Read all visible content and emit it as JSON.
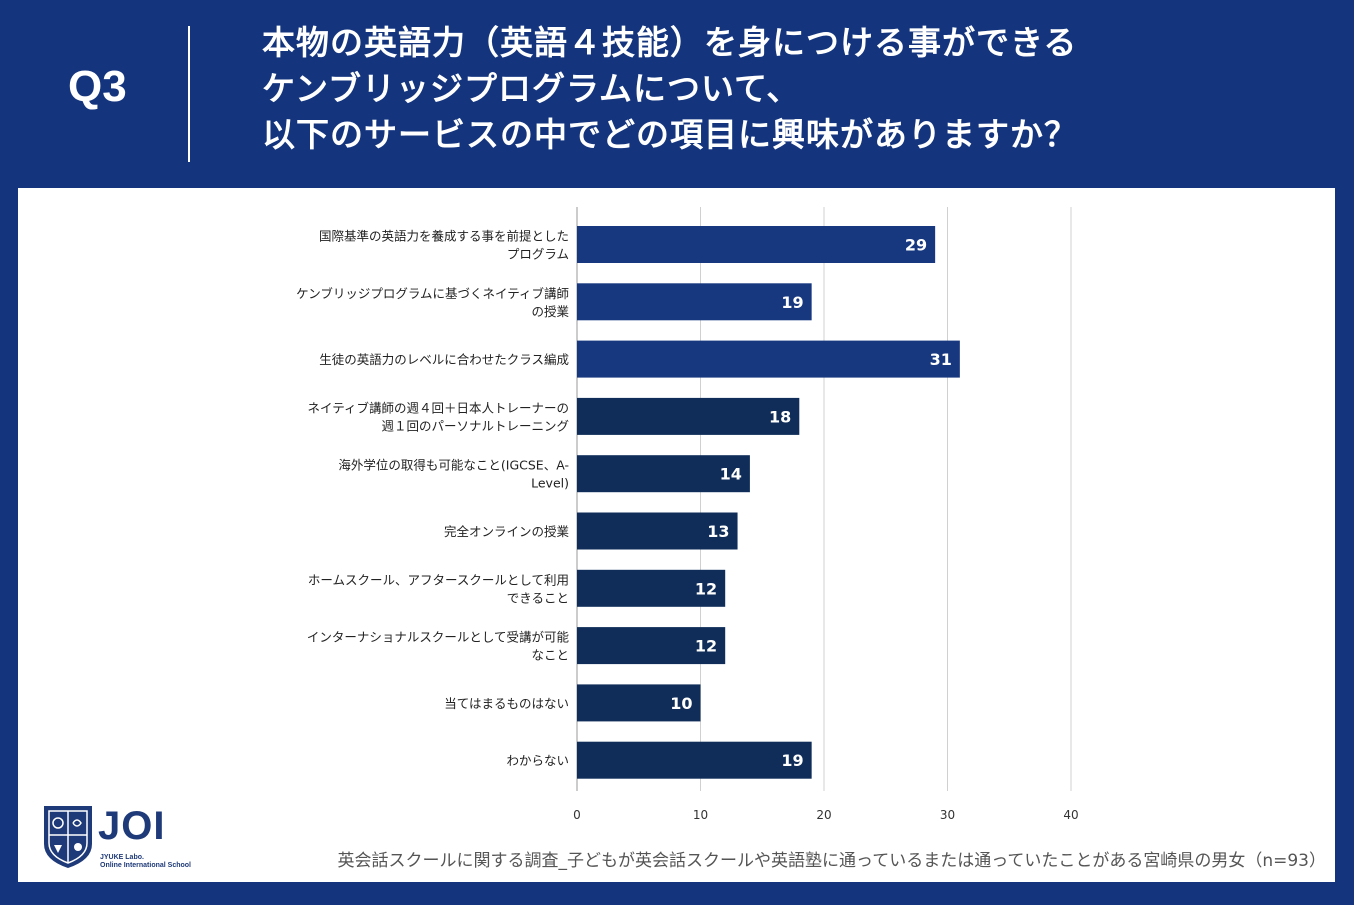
{
  "header": {
    "q_label": "Q3",
    "title_lines": [
      "本物の英語力（英語４技能）を身につける事ができる",
      "ケンブリッジプログラムについて、",
      "以下のサービスの中でどの項目に興味がありますか？"
    ]
  },
  "chart_data": {
    "type": "bar",
    "orientation": "horizontal",
    "categories": [
      [
        "国際基準の英語力を養成する事を前提とした",
        "プログラム"
      ],
      [
        "ケンブリッジプログラムに基づくネイティブ講師",
        "の授業"
      ],
      [
        "生徒の英語力のレベルに合わせたクラス編成"
      ],
      [
        "ネイティブ講師の週４回＋日本人トレーナーの",
        "週１回のパーソナルトレーニング"
      ],
      [
        "海外学位の取得も可能なこと(IGCSE、A-",
        "Level)"
      ],
      [
        "完全オンラインの授業"
      ],
      [
        "ホームスクール、アフタースクールとして利用",
        "できること"
      ],
      [
        "インターナショナルスクールとして受講が可能",
        "なこと"
      ],
      [
        "当てはまるものはない"
      ],
      [
        "わからない"
      ]
    ],
    "values": [
      29,
      19,
      31,
      18,
      14,
      13,
      12,
      12,
      10,
      19
    ],
    "xlim": [
      0,
      40
    ],
    "x_ticks": [
      0,
      10,
      20,
      30,
      40
    ],
    "grid": true,
    "colors": [
      "#17387f",
      "#17387f",
      "#17387f",
      "#0f2d58",
      "#0f2d58",
      "#0f2d58",
      "#0f2d58",
      "#0f2d58",
      "#0f2d58",
      "#0f2d58"
    ]
  },
  "footer": {
    "logo_text": "JOI",
    "logo_sub1": "JYUKE Labo.",
    "logo_sub2": "Online International School",
    "note": "英会話スクールに関する調査_子どもが英会話スクールや英語塾に通っているまたは通っていたことがある宮崎県の男女（n=93）"
  },
  "colors": {
    "background": "#14357e",
    "panel": "#ffffff",
    "grid": "#d0d0d0"
  }
}
